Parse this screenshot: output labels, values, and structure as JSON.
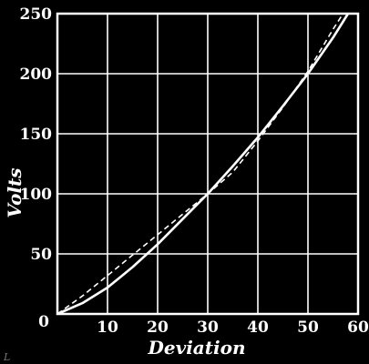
{
  "chart_data": {
    "type": "line",
    "xlabel": "Deviation",
    "ylabel": "Volts",
    "xlim": [
      0,
      60
    ],
    "ylim": [
      0,
      250
    ],
    "xticks": [
      0,
      10,
      20,
      30,
      40,
      50,
      60
    ],
    "yticks": [
      0,
      50,
      100,
      150,
      200,
      250
    ],
    "xtick_labels": [
      "10",
      "20",
      "30",
      "40",
      "50",
      "60"
    ],
    "ytick_labels": [
      "0",
      "50",
      "100",
      "150",
      "200",
      "250"
    ],
    "grid": true,
    "corner_mark": "L",
    "series": [
      {
        "style": "solid",
        "x": [
          0,
          5,
          10,
          15,
          20,
          25,
          30,
          35,
          40,
          45,
          50,
          55,
          58
        ],
        "y": [
          0,
          9,
          22,
          39,
          58,
          79,
          100,
          123,
          147,
          173,
          200,
          230,
          250
        ]
      },
      {
        "style": "dashed",
        "x": [
          0,
          5,
          10,
          15,
          20,
          25,
          30,
          35,
          40,
          45,
          50,
          55,
          57
        ],
        "y": [
          0,
          15,
          32,
          49,
          66,
          83,
          100,
          118,
          144,
          172,
          202,
          237,
          250
        ]
      }
    ]
  },
  "colors": {
    "background": "#000000",
    "foreground": "#ffffff",
    "mark": "#777777"
  }
}
